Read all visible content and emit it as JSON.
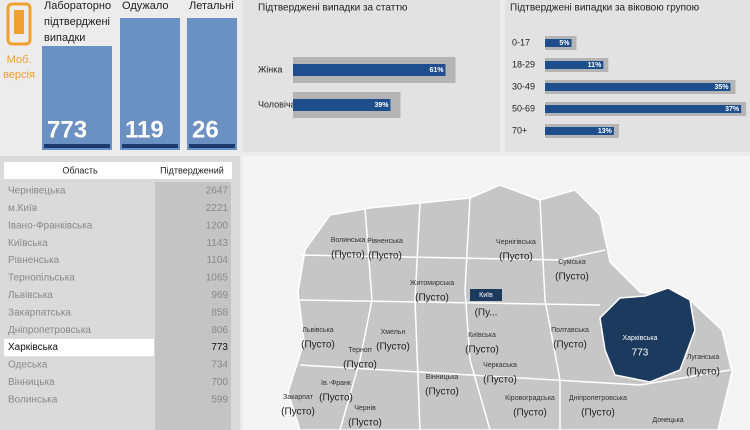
{
  "mobile": {
    "lines": [
      "Моб.",
      "версія"
    ]
  },
  "kpis": [
    {
      "title_lines": [
        "Лабораторно",
        "підтверджені",
        "випадки"
      ],
      "value": 773
    },
    {
      "title_lines": [
        "Одужало"
      ],
      "value": 119
    },
    {
      "title_lines": [
        "Летальні"
      ],
      "value": 26
    }
  ],
  "gender_chart": {
    "title": "Підтверджені випадки за статтю",
    "categories": [
      "Жінка",
      "Чоловіча"
    ],
    "values": [
      61,
      39
    ],
    "value_labels": [
      "61%",
      "39%"
    ],
    "color": "#1f4e8c"
  },
  "age_chart": {
    "title": "Підтверджені випадки за віковою групою",
    "categories": [
      "0-17",
      "18-29",
      "30-49",
      "50-69",
      "70+"
    ],
    "values": [
      5,
      11,
      35,
      37,
      13
    ],
    "value_labels": [
      "5%",
      "11%",
      "35%",
      "37%",
      "13%"
    ],
    "color": "#1f4e8c"
  },
  "table": {
    "header": [
      "Область",
      "Підтверджений"
    ],
    "rows": [
      [
        "Чернівецька",
        2647
      ],
      [
        "м.Київ",
        2221
      ],
      [
        "Івано-Франківська",
        1200
      ],
      [
        "Київська",
        1143
      ],
      [
        "Рівненська",
        1104
      ],
      [
        "Тернопільська",
        1065
      ],
      [
        "Львівська",
        969
      ],
      [
        "Закарпатська",
        858
      ],
      [
        "Дніпропетровська",
        806
      ],
      [
        "Харківська",
        773
      ],
      [
        "Одеська",
        734
      ],
      [
        "Вінницька",
        700
      ],
      [
        "Волинська",
        599
      ]
    ],
    "selected_row": 9
  },
  "map": {
    "regions": [
      {
        "name": "Волинська",
        "value": "(Пусто)"
      },
      {
        "name": "Рівненська",
        "value": "(Пусто)"
      },
      {
        "name": "Чернігівська",
        "value": "(Пусто)"
      },
      {
        "name": "Сумська",
        "value": "(Пусто)"
      },
      {
        "name": "Житомирська",
        "value": "(Пусто)"
      },
      {
        "name": "Київ",
        "value": "(Пу..."
      },
      {
        "name": "Львівська",
        "value": "(Пусто)"
      },
      {
        "name": "Хмельн",
        "value": "(Пусто)"
      },
      {
        "name": "Терноп",
        "value": "(Пусто)"
      },
      {
        "name": "Київська",
        "value": "(Пусто)"
      },
      {
        "name": "Полтавська",
        "value": "(Пусто)"
      },
      {
        "name": "Харківська",
        "value": "773"
      },
      {
        "name": "Луганська",
        "value": "(Пусто)"
      },
      {
        "name": "Вінницька",
        "value": "(Пусто)"
      },
      {
        "name": "Черкаська",
        "value": "(Пусто)"
      },
      {
        "name": "Закарпат",
        "value": "(Пусто)"
      },
      {
        "name": "Ів.-Франк",
        "value": "(Пусто)"
      },
      {
        "name": "Чернів",
        "value": "(Пусто)"
      },
      {
        "name": "Кіровоградська",
        "value": "(Пусто)"
      },
      {
        "name": "Дніпропетровська",
        "value": "(Пусто)"
      },
      {
        "name": "Донецька"
      }
    ]
  }
}
